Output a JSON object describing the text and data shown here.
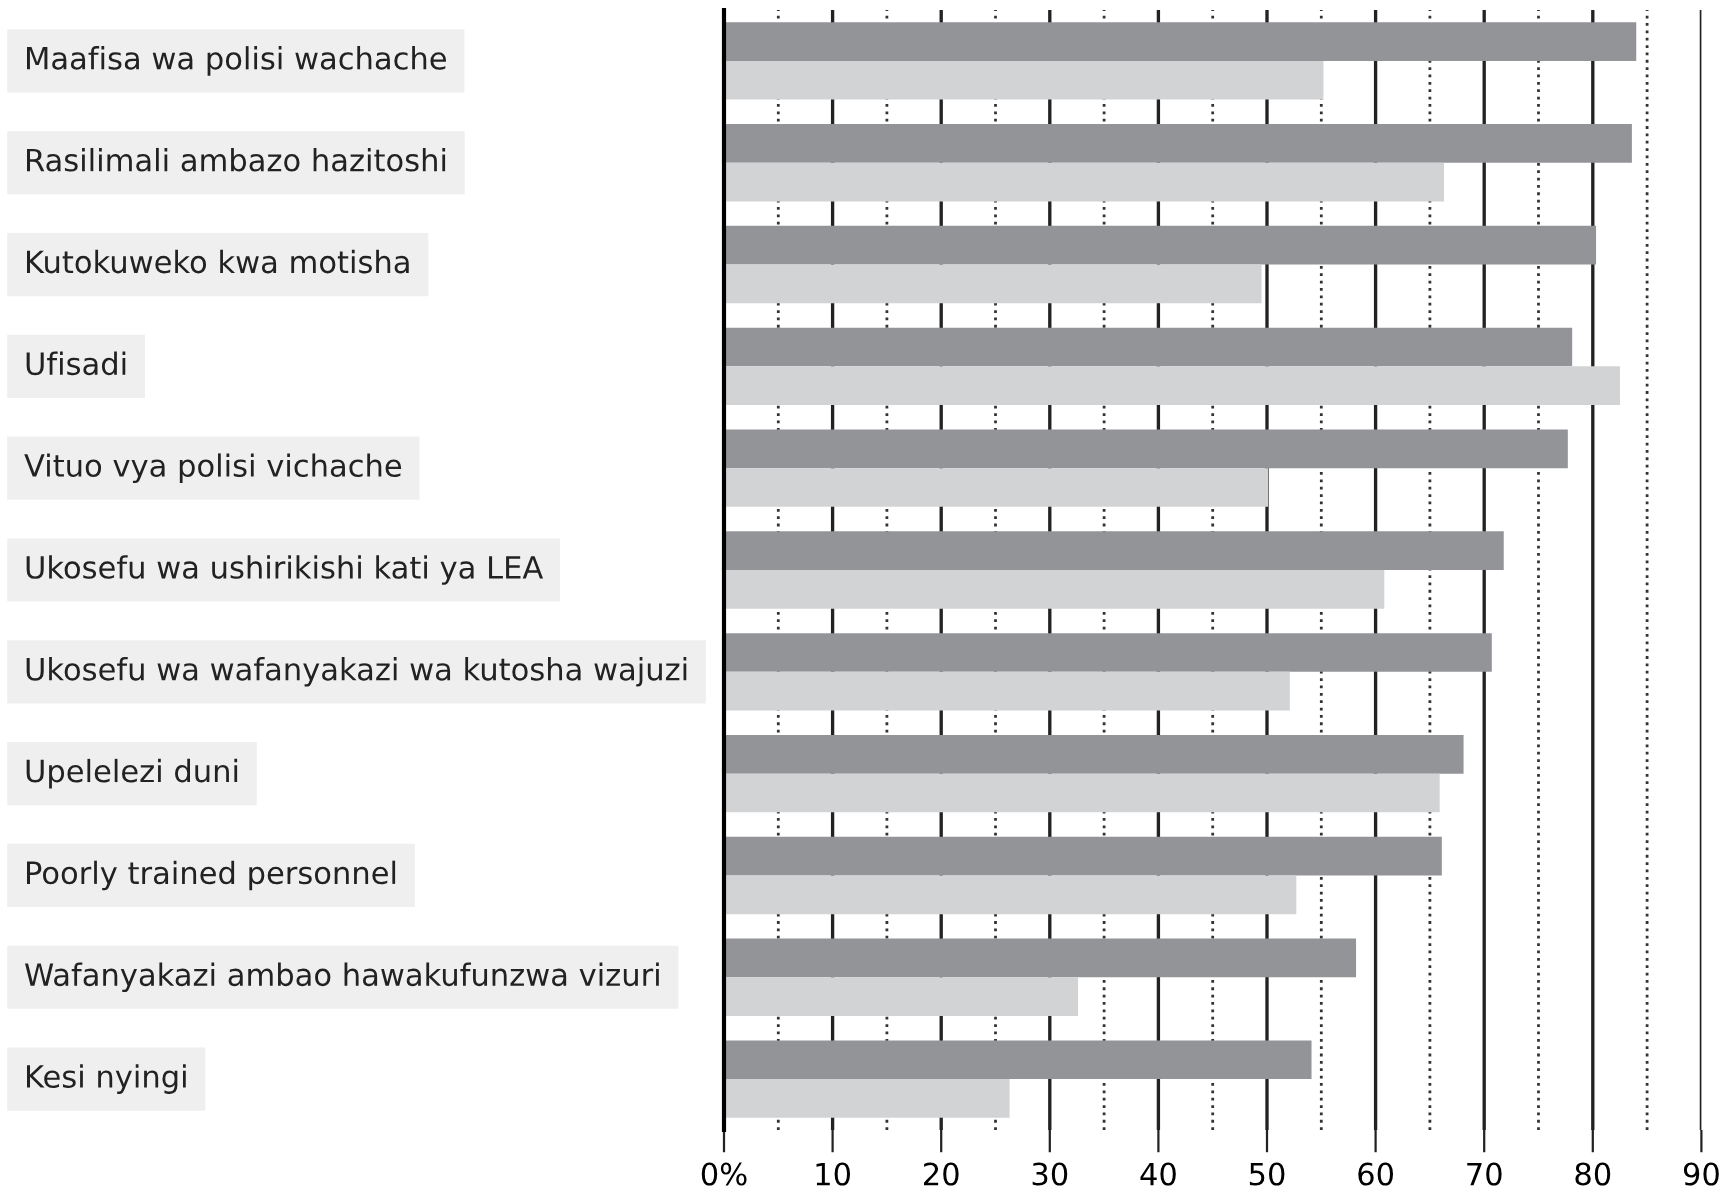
{
  "chart_data": {
    "type": "bar",
    "orientation": "horizontal",
    "categories": [
      "Maafisa wa polisi wachache",
      "Rasilimali ambazo hazitoshi",
      "Kutokuweko kwa motisha",
      "Ufisadi",
      "Vituo vya polisi vichache",
      "Ukosefu wa ushirikishi kati ya LEA",
      "Ukosefu wa wafanyakazi wa kutosha wajuzi",
      "Upelelezi duni",
      "Poorly trained personnel",
      "Wafanyakazi ambao hawakufunzwa vizuri",
      "Kesi nyingi"
    ],
    "series": [
      {
        "color": "#939498",
        "values": [
          84.0,
          83.6,
          80.3,
          78.1,
          77.7,
          71.8,
          70.7,
          68.1,
          66.1,
          58.2,
          54.1
        ]
      },
      {
        "color": "#d2d3d5",
        "values": [
          55.2,
          66.3,
          49.5,
          82.5,
          50.1,
          60.8,
          52.1,
          65.9,
          52.7,
          32.6,
          26.3
        ]
      }
    ],
    "xlim": [
      0,
      90
    ],
    "xticks": [
      {
        "value": 0,
        "label": "0%"
      },
      10,
      20,
      30,
      40,
      50,
      60,
      70,
      80,
      90
    ],
    "grid": "x",
    "legend": false
  }
}
